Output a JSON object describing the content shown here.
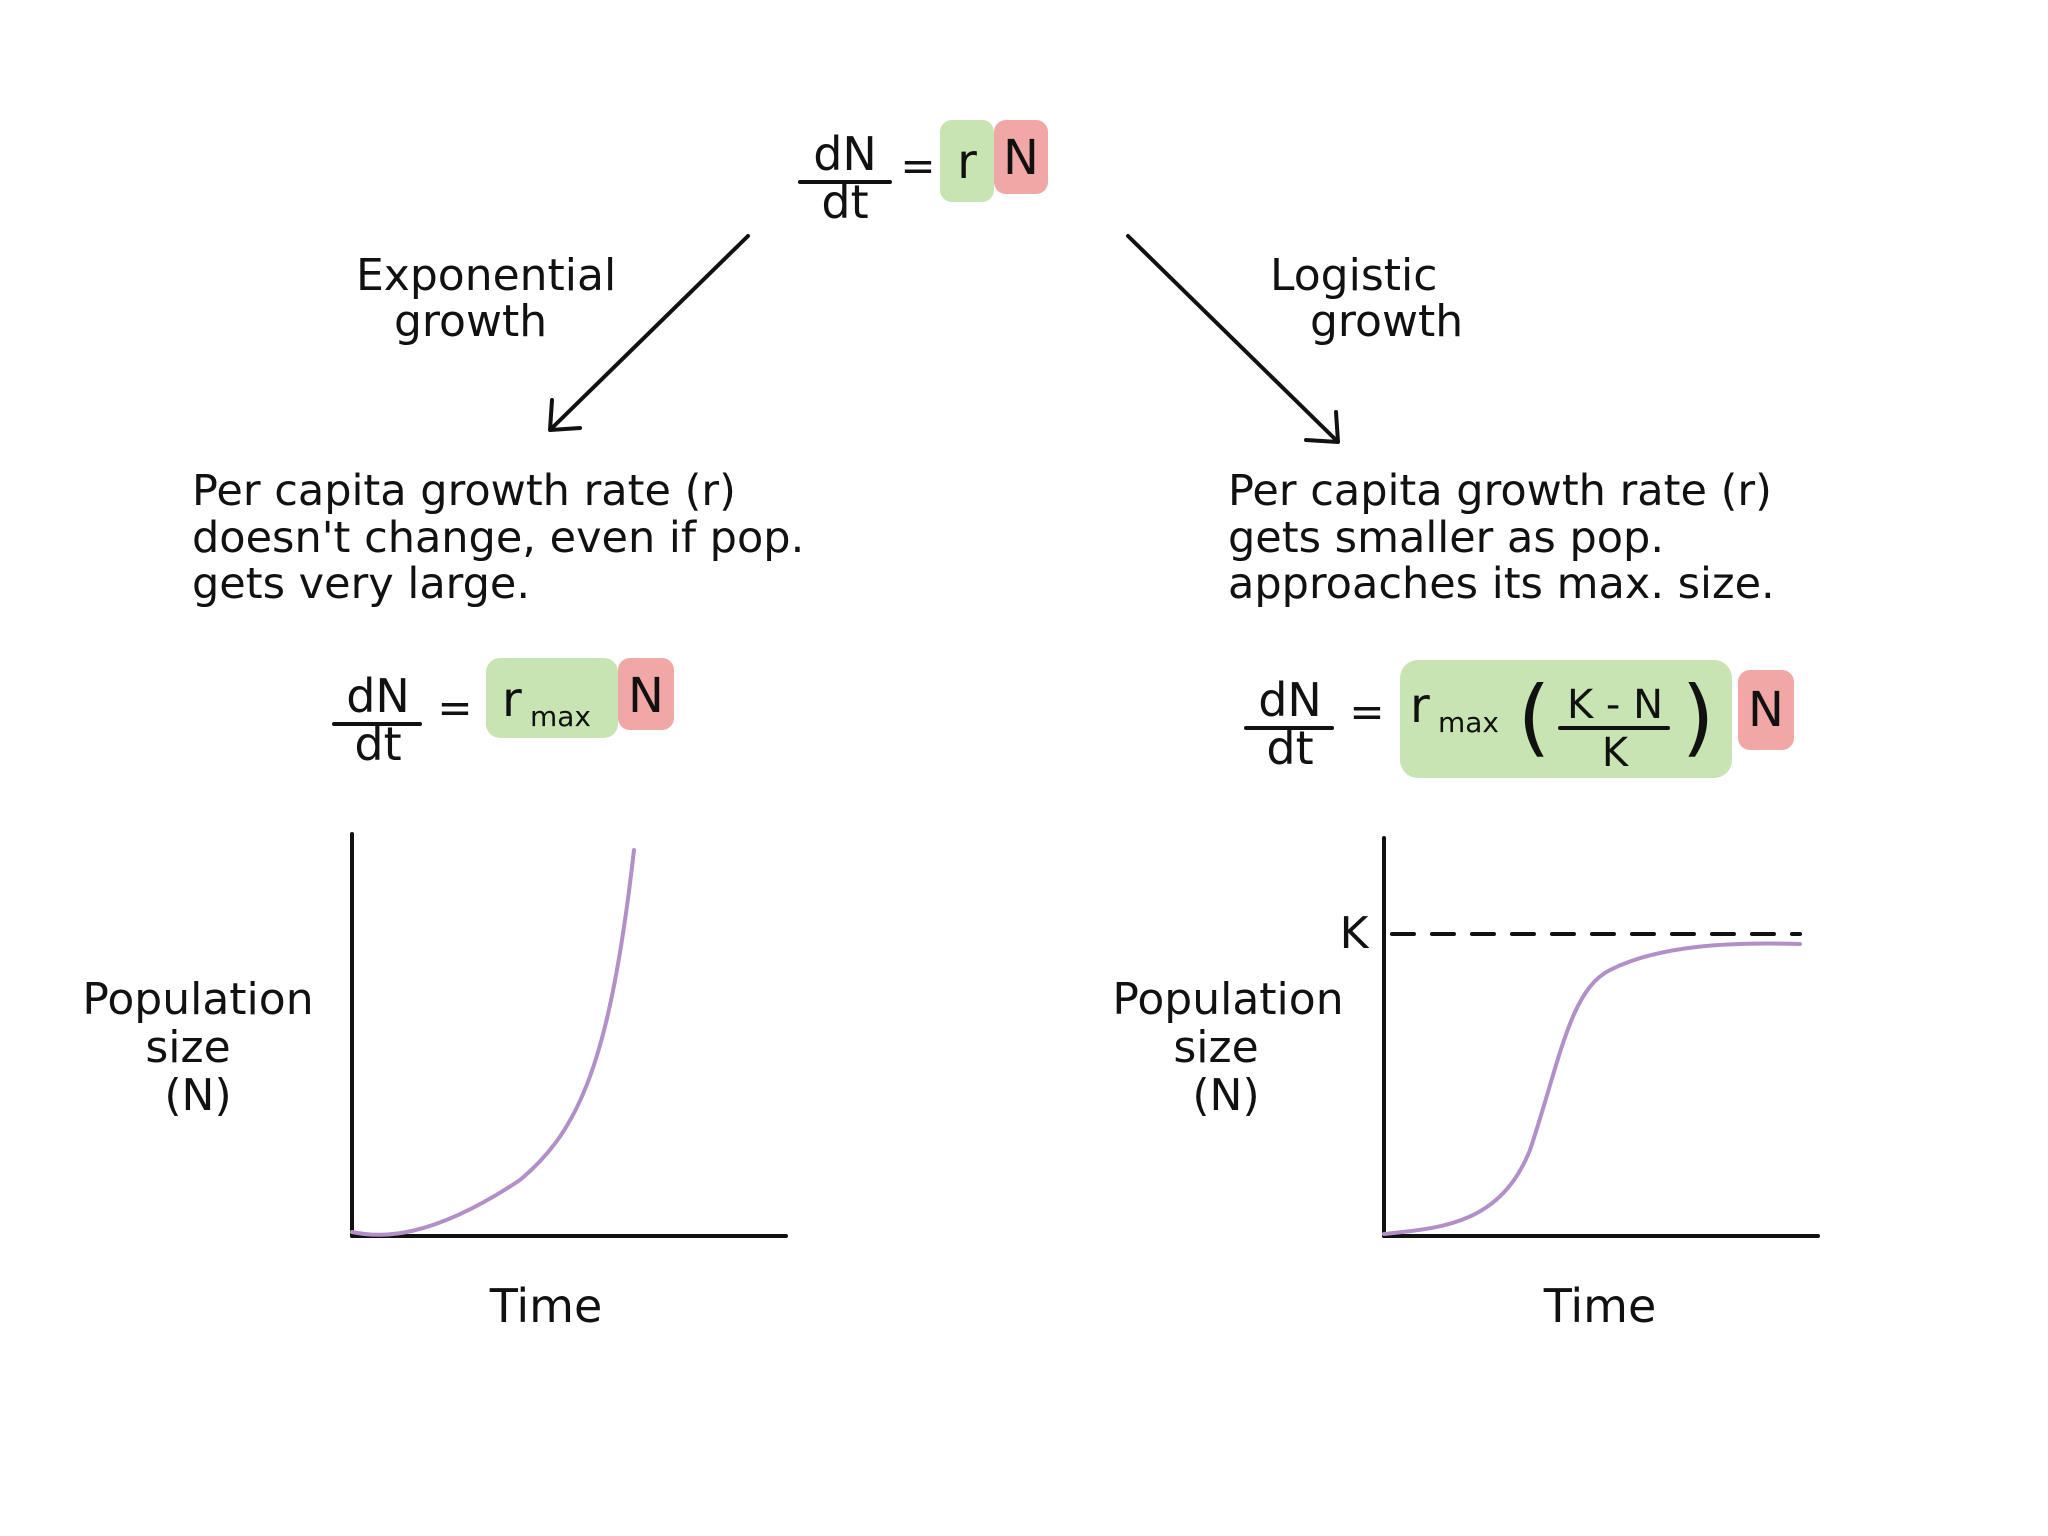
{
  "top_equation": {
    "numerator": "dN",
    "denominator": "dt",
    "equals": "=",
    "rate": "r",
    "population": "N"
  },
  "branches": {
    "left_label_line1": "Exponential",
    "left_label_line2": "growth",
    "right_label_line1": "Logistic",
    "right_label_line2": "growth"
  },
  "exponential": {
    "description_line1": "Per capita growth rate (r)",
    "description_line2": "doesn't change, even if pop.",
    "description_line3": "gets very large.",
    "equation": {
      "numerator": "dN",
      "denominator": "dt",
      "equals": "=",
      "rate_symbol": "r",
      "rate_subscript": "max",
      "population": "N"
    },
    "graph": {
      "ylabel_line1": "Population",
      "ylabel_line2": "size",
      "ylabel_line3": "(N)",
      "xlabel": "Time"
    }
  },
  "logistic": {
    "description_line1": "Per capita growth rate (r)",
    "description_line2": "gets smaller as pop.",
    "description_line3": "approaches its max. size.",
    "equation": {
      "numerator": "dN",
      "denominator": "dt",
      "equals": "=",
      "rate_symbol": "r",
      "rate_subscript": "max",
      "open_paren": "(",
      "inner_numerator": "K - N",
      "inner_denominator": "K",
      "close_paren": ")",
      "population": "N"
    },
    "graph": {
      "ylabel_line1": "Population",
      "ylabel_line2": "size",
      "ylabel_line3": "(N)",
      "xlabel": "Time",
      "capacity_label": "K"
    }
  },
  "colors": {
    "rate_box": "#c8e4b3",
    "population_box": "#f1a7a5",
    "curve": "#b28fc9",
    "ink": "#111111"
  }
}
